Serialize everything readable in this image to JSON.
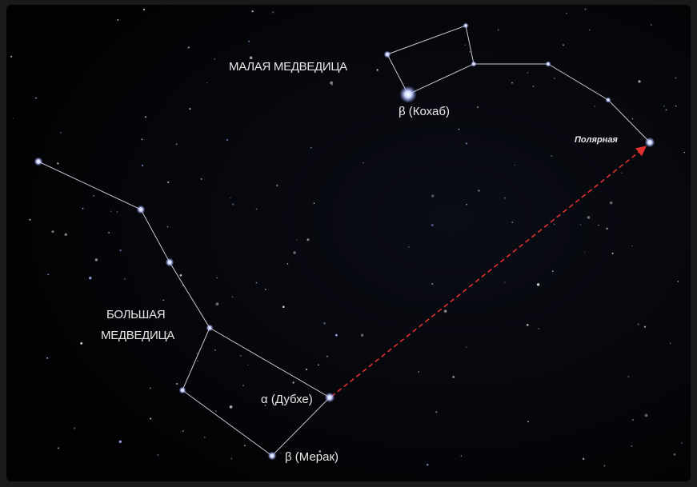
{
  "labels": {
    "little_dipper": "МАЛАЯ МЕДВЕДИЦА",
    "kochab": "β (Кохаб)",
    "polaris": "Полярная",
    "big_dipper": [
      "БОЛЬШАЯ",
      "МЕДВЕДИЦА"
    ],
    "dubhe": "α (Дубхе)",
    "merak": "β (Мерак)"
  }
}
